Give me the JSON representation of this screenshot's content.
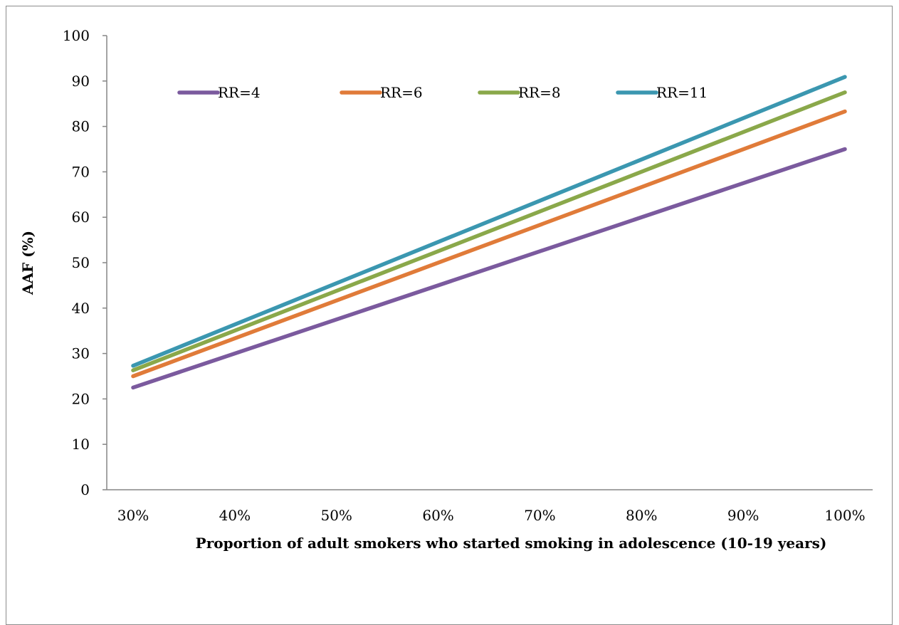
{
  "chart_data": {
    "type": "line",
    "title": "",
    "xlabel": "Proportion of adult smokers who started smoking in adolescence (10-19 years)",
    "ylabel": "AAF (%)",
    "x": [
      30,
      100
    ],
    "x_tick_labels": [
      "30%",
      "40%",
      "50%",
      "60%",
      "70%",
      "80%",
      "90%",
      "100%"
    ],
    "x_ticks": [
      30,
      40,
      50,
      60,
      70,
      80,
      90,
      100
    ],
    "y_ticks": [
      0,
      10,
      20,
      30,
      40,
      50,
      60,
      70,
      80,
      90,
      100
    ],
    "xlim": [
      30,
      100
    ],
    "ylim": [
      0,
      100
    ],
    "grid": false,
    "legend_position": "top",
    "series": [
      {
        "name": "RR=4",
        "color": "#7b5a9e",
        "values": [
          22.5,
          75.0
        ]
      },
      {
        "name": "RR=6",
        "color": "#e07b39",
        "values": [
          25.0,
          83.3
        ]
      },
      {
        "name": "RR=8",
        "color": "#8aa84a",
        "values": [
          26.3,
          87.5
        ]
      },
      {
        "name": "RR=11",
        "color": "#3b97b0",
        "values": [
          27.3,
          90.9
        ]
      }
    ]
  }
}
